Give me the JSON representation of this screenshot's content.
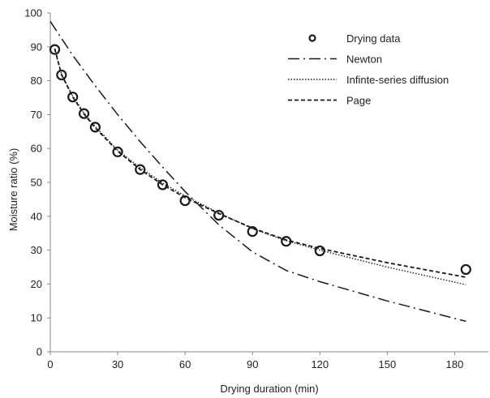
{
  "chart_data": {
    "type": "line",
    "xlabel": "Drying duration (min)",
    "ylabel": "Moisture ratio (%)",
    "xlim": [
      0,
      195
    ],
    "ylim": [
      0,
      100
    ],
    "x_ticks": [
      0,
      30,
      60,
      90,
      120,
      150,
      180
    ],
    "y_ticks": [
      0,
      10,
      20,
      30,
      40,
      50,
      60,
      70,
      80,
      90,
      100
    ],
    "grid": false,
    "legend_position": "top-right",
    "series": [
      {
        "name": "Drying data",
        "style": "markers",
        "x": [
          2,
          5,
          10,
          15,
          20,
          30,
          40,
          50,
          60,
          75,
          90,
          105,
          120,
          185
        ],
        "y": [
          89.2,
          81.7,
          75.2,
          70.3,
          66.3,
          59.0,
          53.8,
          49.3,
          44.6,
          40.3,
          35.5,
          32.6,
          29.8,
          24.3
        ]
      },
      {
        "name": "Newton",
        "style": "dash-dot",
        "x": [
          0,
          10,
          20,
          30,
          40,
          50,
          60,
          75,
          90,
          105,
          120,
          150,
          185
        ],
        "y": [
          97.5,
          87.5,
          78.5,
          70.0,
          62.0,
          54.5,
          47.3,
          37.5,
          29.5,
          24.0,
          20.7,
          15.0,
          9.0
        ]
      },
      {
        "name": "Infinte-series diffusion",
        "style": "dotted",
        "x": [
          2,
          5,
          10,
          15,
          20,
          30,
          40,
          50,
          60,
          75,
          90,
          105,
          120,
          150,
          185
        ],
        "y": [
          89.0,
          82.0,
          75.5,
          70.5,
          66.5,
          59.5,
          54.3,
          49.8,
          46.0,
          41.0,
          36.3,
          32.8,
          30.0,
          25.0,
          19.8
        ]
      },
      {
        "name": "Page",
        "style": "dashed",
        "x": [
          2,
          5,
          10,
          15,
          20,
          30,
          40,
          50,
          60,
          75,
          90,
          105,
          120,
          150,
          185
        ],
        "y": [
          89.5,
          81.8,
          75.2,
          70.2,
          66.1,
          59.2,
          53.8,
          49.3,
          45.5,
          40.8,
          36.5,
          33.0,
          30.5,
          26.3,
          22.0
        ]
      }
    ]
  }
}
